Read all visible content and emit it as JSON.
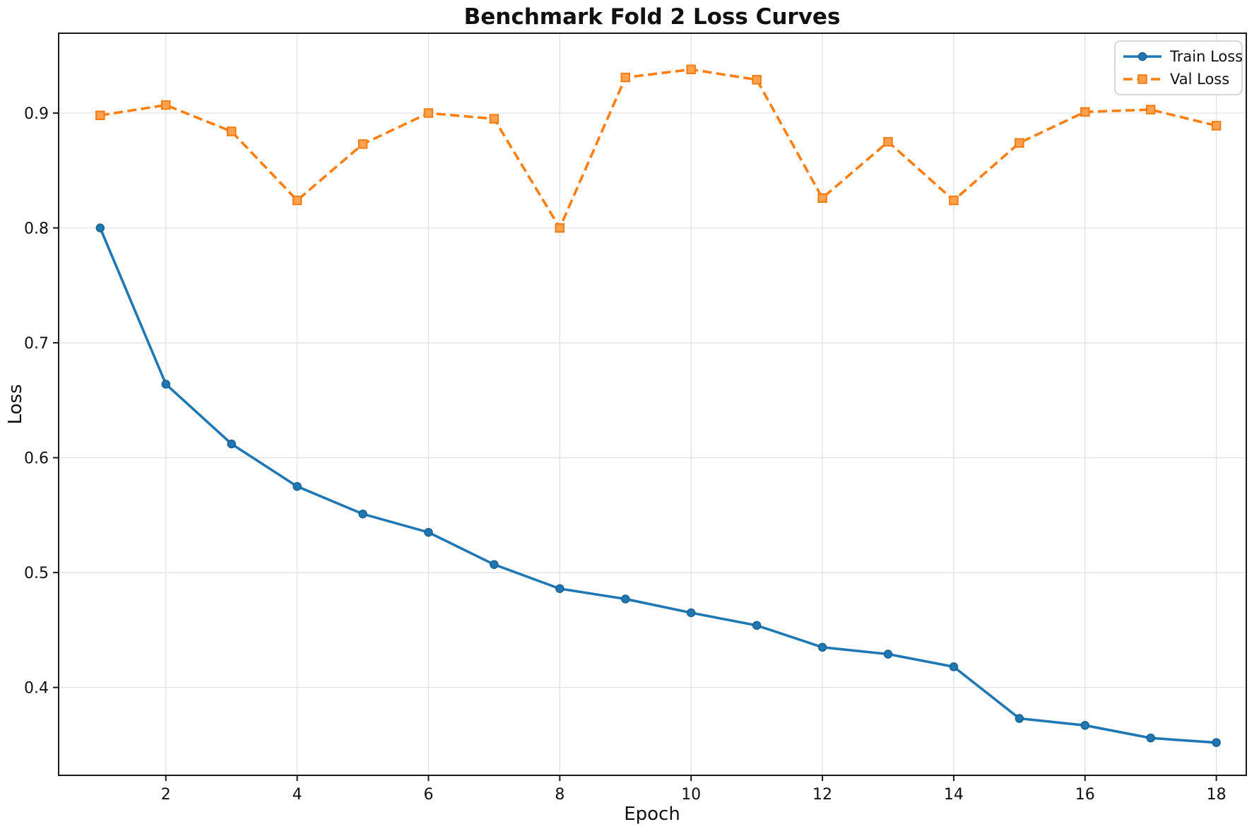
{
  "figure": {
    "background": "#ffffff"
  },
  "chart_data": {
    "type": "line",
    "title": "Benchmark Fold 2 Loss Curves",
    "xlabel": "Epoch",
    "ylabel": "Loss",
    "x": [
      1,
      2,
      3,
      4,
      5,
      6,
      7,
      8,
      9,
      10,
      11,
      12,
      13,
      14,
      15,
      16,
      17,
      18
    ],
    "series": [
      {
        "name": "Train Loss",
        "color": "#1f77b4",
        "linestyle": "solid",
        "marker": "circle",
        "marker_fill": "#1f77b4",
        "marker_edge": "#1a628f",
        "values": [
          0.8,
          0.664,
          0.612,
          0.575,
          0.551,
          0.535,
          0.507,
          0.486,
          0.477,
          0.465,
          0.454,
          0.435,
          0.429,
          0.418,
          0.373,
          0.367,
          0.356,
          0.352
        ]
      },
      {
        "name": "Val Loss",
        "color": "#ff7f0e",
        "linestyle": "dashed",
        "marker": "square",
        "marker_fill": "#ffa04e",
        "marker_edge": "#ef7d14",
        "values": [
          0.898,
          0.907,
          0.884,
          0.824,
          0.873,
          0.9,
          0.895,
          0.8,
          0.931,
          0.938,
          0.929,
          0.826,
          0.875,
          0.824,
          0.874,
          0.901,
          0.903,
          0.889
        ]
      }
    ],
    "xticks": {
      "values": [
        2,
        4,
        6,
        8,
        10,
        12,
        14,
        16,
        18
      ],
      "labels": [
        "2",
        "4",
        "6",
        "8",
        "10",
        "12",
        "14",
        "16",
        "18"
      ]
    },
    "yticks": {
      "values": [
        0.4,
        0.5,
        0.6,
        0.7,
        0.8,
        0.9
      ],
      "labels": [
        "0.4",
        "0.5",
        "0.6",
        "0.7",
        "0.8",
        "0.9"
      ]
    },
    "xlim": [
      0.367,
      18.456
    ],
    "ylim": [
      0.3235,
      0.9695
    ],
    "grid": true,
    "grid_color": "#e2e2e2",
    "spine_color": "#1a1a1a",
    "legend": {
      "position": "upper right",
      "entries": [
        "Train Loss",
        "Val Loss"
      ],
      "border_color": "#cccccc",
      "background": "#ffffff"
    }
  }
}
